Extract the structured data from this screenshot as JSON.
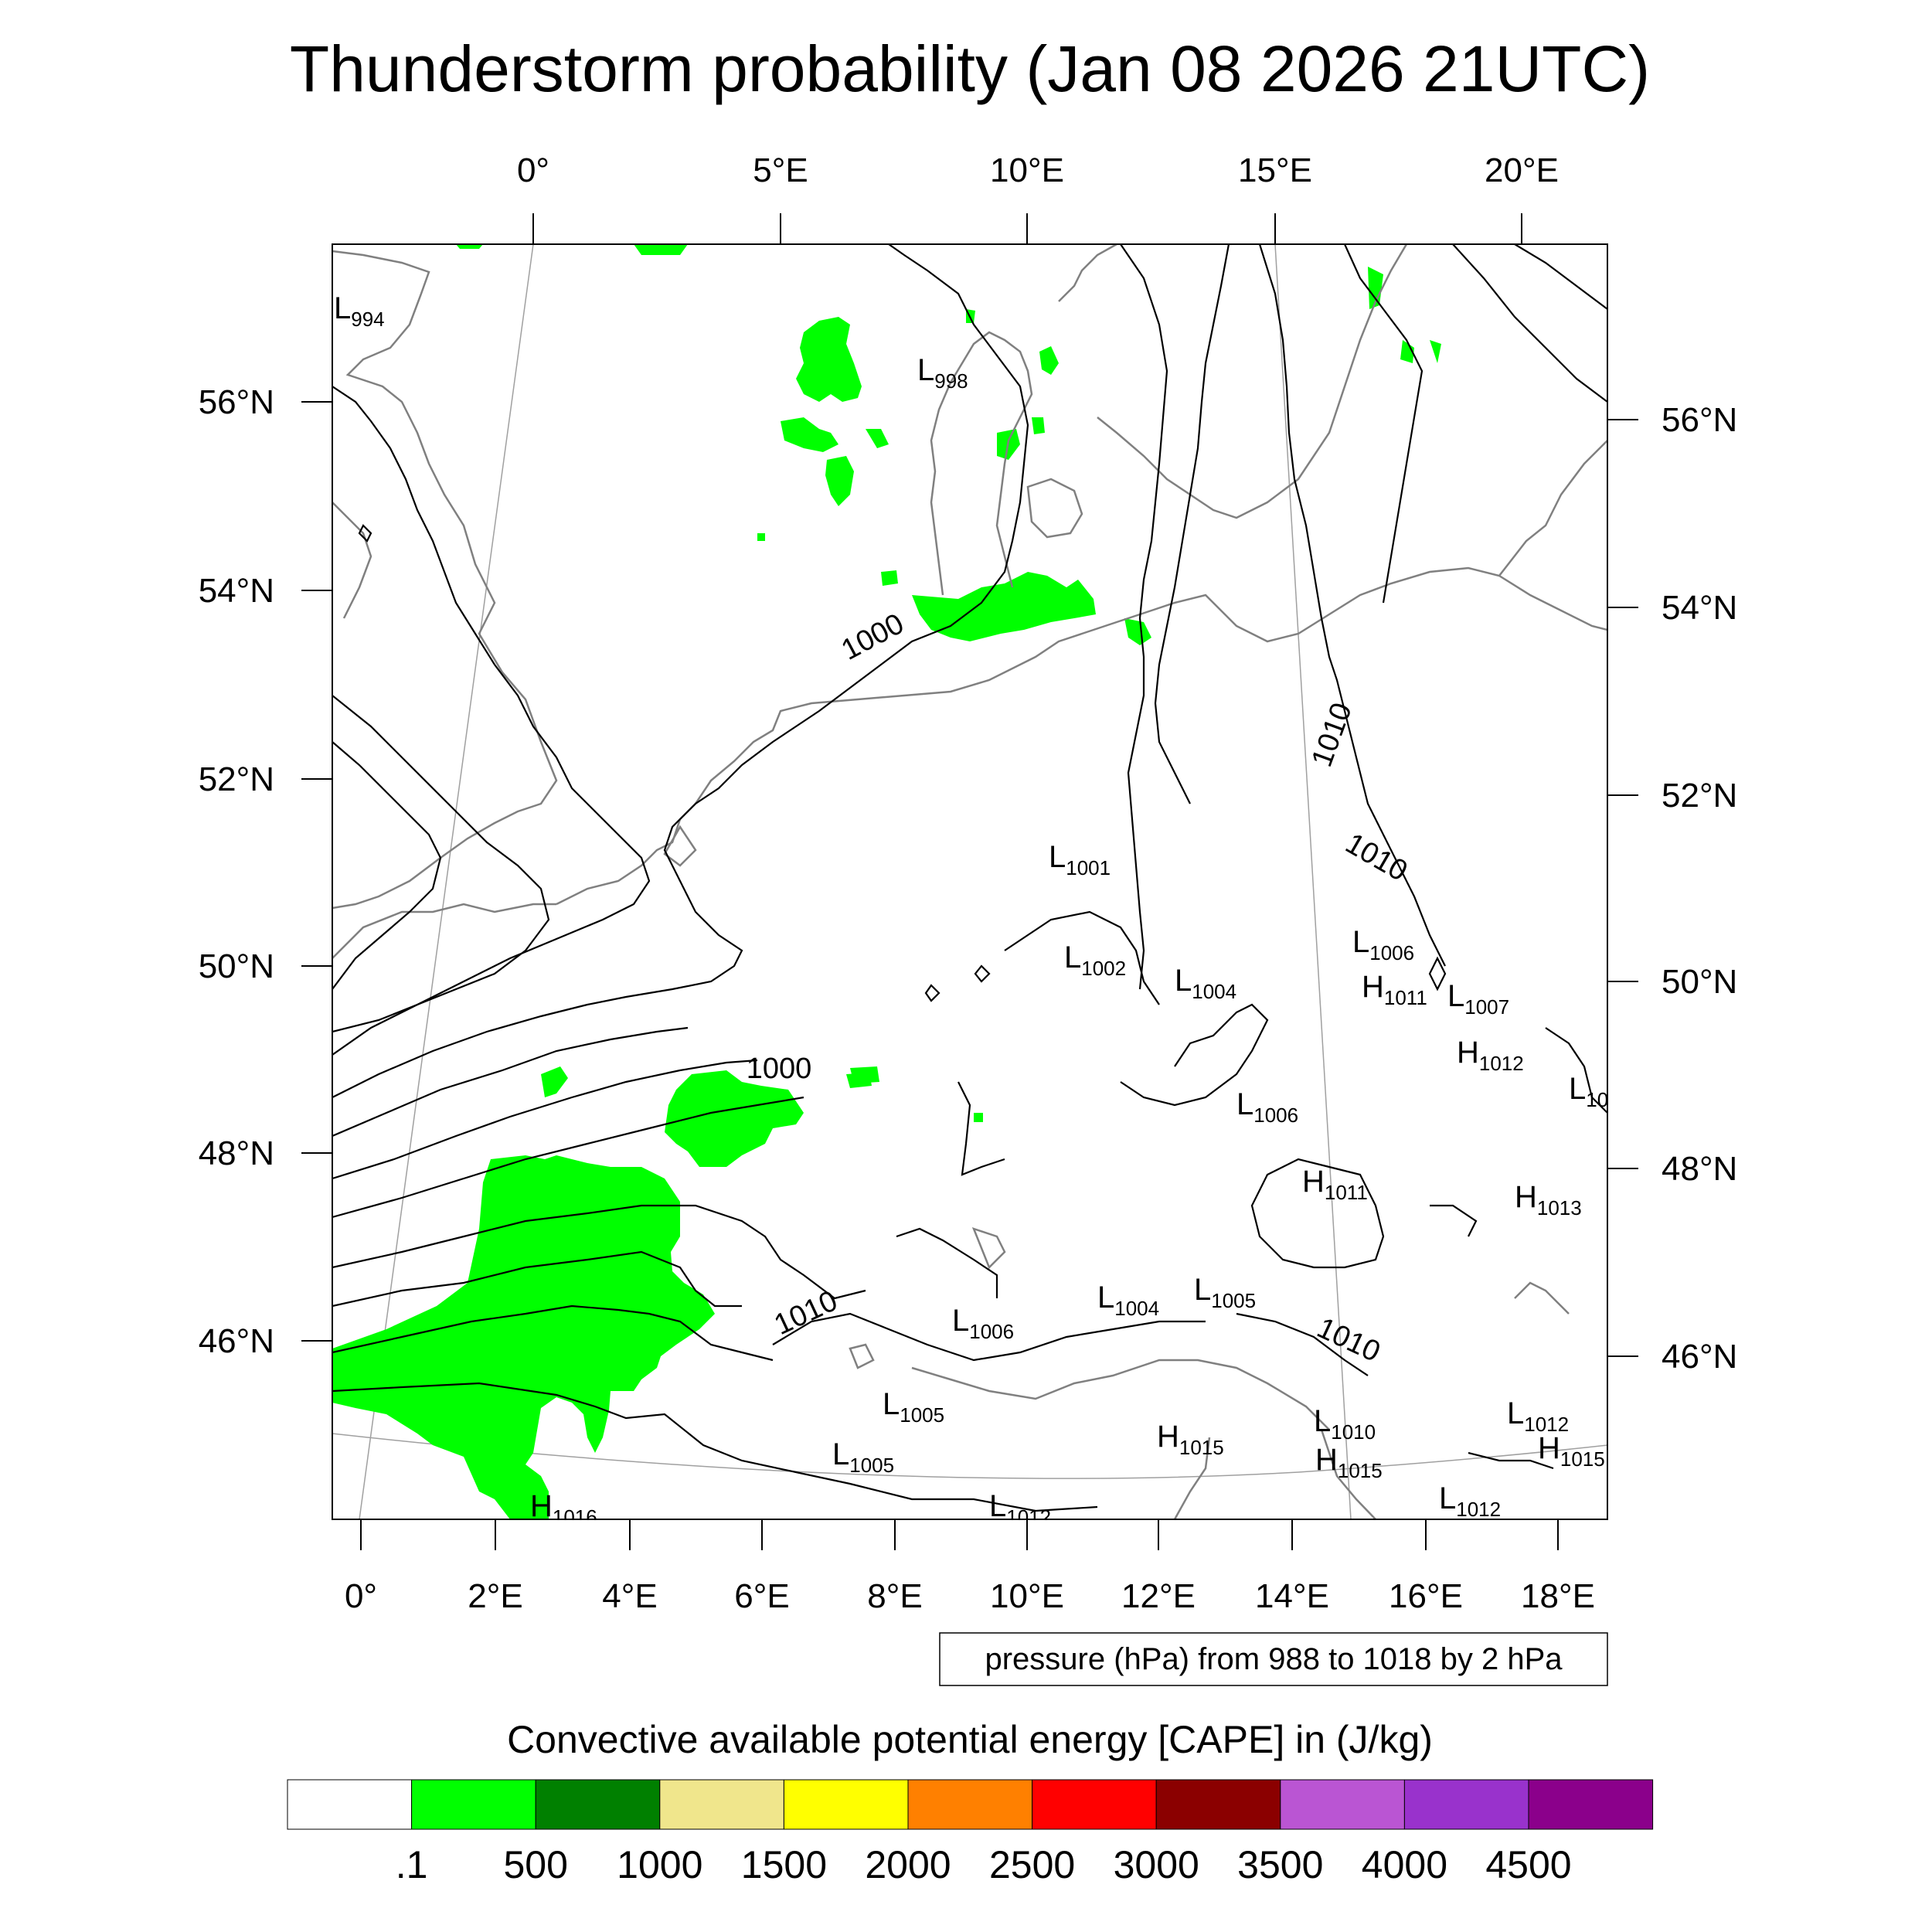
{
  "title": "Thunderstorm probability (Jan 08 2026 21UTC)",
  "top_lon_labels": [
    "0°",
    "5°E",
    "10°E",
    "15°E",
    "20°E"
  ],
  "bottom_lon_labels": [
    "0°",
    "2°E",
    "4°E",
    "6°E",
    "8°E",
    "10°E",
    "12°E",
    "14°E",
    "16°E",
    "18°E"
  ],
  "left_lat_labels": [
    "56°N",
    "54°N",
    "52°N",
    "50°N",
    "48°N",
    "46°N"
  ],
  "right_lat_labels": [
    "56°N",
    "54°N",
    "52°N",
    "50°N",
    "48°N",
    "46°N"
  ],
  "isobar_labels": [
    "1000",
    "1000",
    "1010",
    "1010",
    "1010",
    "1010"
  ],
  "pressure_centers": [
    {
      "letter": "L",
      "value": "994"
    },
    {
      "letter": "L",
      "value": "998"
    },
    {
      "letter": "L",
      "value": "1001"
    },
    {
      "letter": "L",
      "value": "1002"
    },
    {
      "letter": "L",
      "value": "1004"
    },
    {
      "letter": "L",
      "value": "1006"
    },
    {
      "letter": "H",
      "value": "1011"
    },
    {
      "letter": "L",
      "value": "1007"
    },
    {
      "letter": "H",
      "value": "1012"
    },
    {
      "letter": "L",
      "value": "10"
    },
    {
      "letter": "L",
      "value": "1006"
    },
    {
      "letter": "H",
      "value": "1011"
    },
    {
      "letter": "H",
      "value": "1013"
    },
    {
      "letter": "L",
      "value": "1004"
    },
    {
      "letter": "L",
      "value": "1005"
    },
    {
      "letter": "L",
      "value": "1006"
    },
    {
      "letter": "L",
      "value": "1005"
    },
    {
      "letter": "L",
      "value": "1005"
    },
    {
      "letter": "H",
      "value": "1015"
    },
    {
      "letter": "L",
      "value": "1010"
    },
    {
      "letter": "H",
      "value": "1015"
    },
    {
      "letter": "L",
      "value": "1012"
    },
    {
      "letter": "H",
      "value": "1015"
    },
    {
      "letter": "L",
      "value": "1012"
    },
    {
      "letter": "L",
      "value": "1012"
    },
    {
      "letter": "H",
      "value": "1016"
    }
  ],
  "contour_info": "pressure (hPa) from 988 to 1018 by 2 hPa",
  "colorbar": {
    "title": "Convective available potential energy [CAPE] in (J/kg)",
    "colors": [
      "#ffffff",
      "#00ff00",
      "#008000",
      "#f0e68c",
      "#ffff00",
      "#ff8000",
      "#ff0000",
      "#8b0000",
      "#ba55d3",
      "#9932cc",
      "#8b008b"
    ],
    "labels": [
      ".1",
      "500",
      "1000",
      "1500",
      "2000",
      "2500",
      "3000",
      "3500",
      "4000",
      "4500"
    ]
  },
  "colors": {
    "cape_fill": "#00ff00",
    "coastline": "#808080",
    "isobar": "#000000",
    "gridline": "#a0a0a0"
  }
}
